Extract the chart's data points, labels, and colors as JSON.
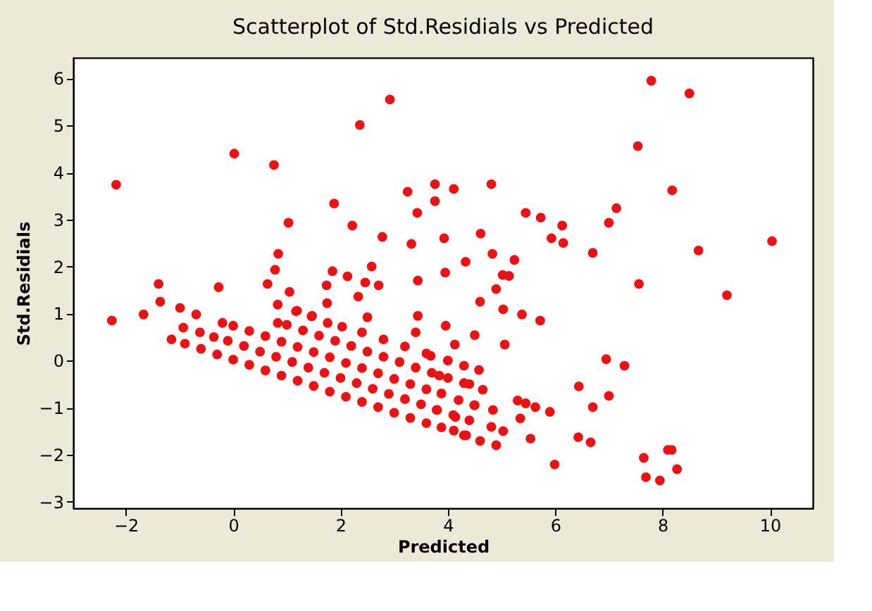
{
  "chart_data": {
    "type": "scatter",
    "title": "Scatterplot of Std.Residials vs Predicted",
    "xlabel": "Predicted",
    "ylabel": "Std.Residials",
    "xlim": [
      -2.98,
      10.8
    ],
    "ylim": [
      -3.14,
      6.44
    ],
    "xticks": [
      -2,
      0,
      2,
      4,
      6,
      8,
      10
    ],
    "yticks": [
      -3,
      -2,
      -1,
      0,
      1,
      2,
      3,
      4,
      5,
      6
    ],
    "grid": false,
    "marker": "circle",
    "series": [
      {
        "color": "#ee1111",
        "x": [
          -2.18,
          0.02,
          0.76,
          2.36,
          2.92,
          1.03,
          1.88,
          2.22,
          2.78,
          3.25,
          3.43,
          3.76,
          3.76,
          3.32,
          3.93,
          0.84,
          0.78,
          0.64,
          1.05,
          0.83,
          1.19,
          1.46,
          -1.39,
          -1.36,
          -0.27,
          -1.67,
          -0.99,
          -0.69,
          -2.26,
          1.85,
          1.74,
          2.13,
          2.33,
          2.46,
          2.58,
          2.71,
          1.75,
          2.5,
          3.44,
          3.95,
          3.44,
          7.79,
          8.5,
          7.54,
          8.18,
          7.14,
          7.0,
          4.11,
          4.81,
          5.45,
          5.73,
          6.13,
          5.93,
          6.15,
          6.7,
          8.67,
          10.04,
          4.61,
          4.33,
          4.83,
          5.24,
          5.02,
          5.14,
          4.9,
          4.6,
          5.03,
          5.38,
          5.72,
          7.56,
          9.2,
          3.96,
          4.5,
          5.06,
          4.13,
          6.95,
          7.29,
          6.44,
          7.0,
          6.7,
          5.9,
          5.3,
          5.45,
          5.63,
          5.35,
          4.81,
          5.03,
          4.34,
          4.11,
          4.9,
          5.54,
          6.43,
          6.66,
          5.99,
          7.65,
          8.1,
          8.17,
          8.27,
          7.69,
          7.95,
          4.58,
          3.84,
          4.4,
          4.65,
          4.84,
          4.49,
          3.88,
          3.79,
          3.88,
          4.14,
          -0.93,
          -0.62,
          -0.36,
          -0.2,
          0.83,
          1.17,
          1.47,
          1.76,
          2.03,
          3.4,
          3.68,
          -1.15,
          -0.9,
          -0.6,
          -0.3,
          0.0,
          0.3,
          0.6,
          0.9,
          1.2,
          1.5,
          1.8,
          2.1,
          2.4,
          2.7,
          3.0,
          3.3,
          3.6,
          4.3,
          4.6,
          -0.1,
          0.2,
          0.5,
          0.8,
          1.1,
          1.4,
          1.7,
          2.0,
          2.3,
          2.6,
          2.9,
          3.2,
          3.5,
          3.8,
          4.1,
          4.4,
          0.0,
          0.3,
          0.6,
          0.9,
          1.2,
          1.5,
          1.8,
          2.1,
          2.4,
          2.7,
          3.0,
          3.3,
          3.6,
          4.2,
          4.5,
          1.0,
          1.3,
          1.6,
          1.9,
          2.2,
          2.5,
          2.8,
          3.1,
          3.4,
          3.7,
          4.0,
          4.3,
          2.4,
          2.8,
          3.2,
          3.6,
          4.0,
          4.3
        ],
        "values": [
          3.74,
          4.4,
          4.16,
          5.01,
          5.55,
          2.93,
          3.34,
          2.87,
          2.63,
          3.59,
          3.14,
          3.75,
          3.39,
          2.48,
          2.6,
          2.27,
          1.93,
          1.63,
          1.46,
          1.19,
          1.06,
          0.94,
          1.63,
          1.25,
          1.56,
          0.98,
          1.12,
          0.98,
          0.85,
          1.9,
          1.6,
          1.79,
          1.36,
          1.66,
          2.0,
          1.6,
          1.22,
          0.92,
          1.7,
          1.87,
          0.95,
          5.95,
          5.68,
          4.56,
          3.62,
          3.24,
          2.93,
          3.65,
          3.75,
          3.14,
          3.04,
          2.87,
          2.6,
          2.5,
          2.29,
          2.34,
          2.54,
          2.7,
          2.1,
          2.27,
          2.14,
          1.82,
          1.8,
          1.52,
          1.25,
          1.09,
          0.98,
          0.85,
          1.63,
          1.39,
          0.74,
          0.54,
          0.34,
          0.34,
          0.03,
          -0.11,
          -0.55,
          -0.75,
          -0.99,
          -1.09,
          -0.85,
          -0.91,
          -0.99,
          -1.23,
          -1.41,
          -1.5,
          -1.59,
          -1.49,
          -1.8,
          -1.66,
          -1.63,
          -1.74,
          -2.21,
          -2.07,
          -1.9,
          -1.9,
          -2.31,
          -2.48,
          -2.55,
          -0.2,
          -0.32,
          -0.5,
          -0.62,
          -1.05,
          -0.95,
          -0.7,
          -1.05,
          -1.42,
          -1.2,
          0.7,
          0.6,
          0.5,
          0.8,
          0.8,
          1.05,
          0.95,
          0.8,
          0.72,
          0.6,
          0.1,
          0.45,
          0.36,
          0.25,
          0.13,
          0.02,
          -0.09,
          -0.21,
          -0.32,
          -0.43,
          -0.54,
          -0.66,
          -0.77,
          -0.88,
          -0.99,
          -1.11,
          -1.22,
          -1.33,
          -1.59,
          -1.71,
          0.42,
          0.31,
          0.19,
          0.08,
          -0.03,
          -0.15,
          -0.26,
          -0.37,
          -0.48,
          -0.6,
          -0.71,
          -0.82,
          -0.93,
          -1.05,
          -1.16,
          -1.27,
          0.74,
          0.63,
          0.52,
          0.4,
          0.29,
          0.18,
          0.07,
          -0.05,
          -0.16,
          -0.27,
          -0.39,
          -0.5,
          -0.61,
          -0.84,
          -0.95,
          0.76,
          0.64,
          0.53,
          0.42,
          0.31,
          0.19,
          0.08,
          -0.03,
          -0.15,
          -0.26,
          -0.37,
          -0.48,
          0.6,
          0.45,
          0.3,
          0.15,
          0.0,
          -0.11
        ]
      }
    ]
  }
}
